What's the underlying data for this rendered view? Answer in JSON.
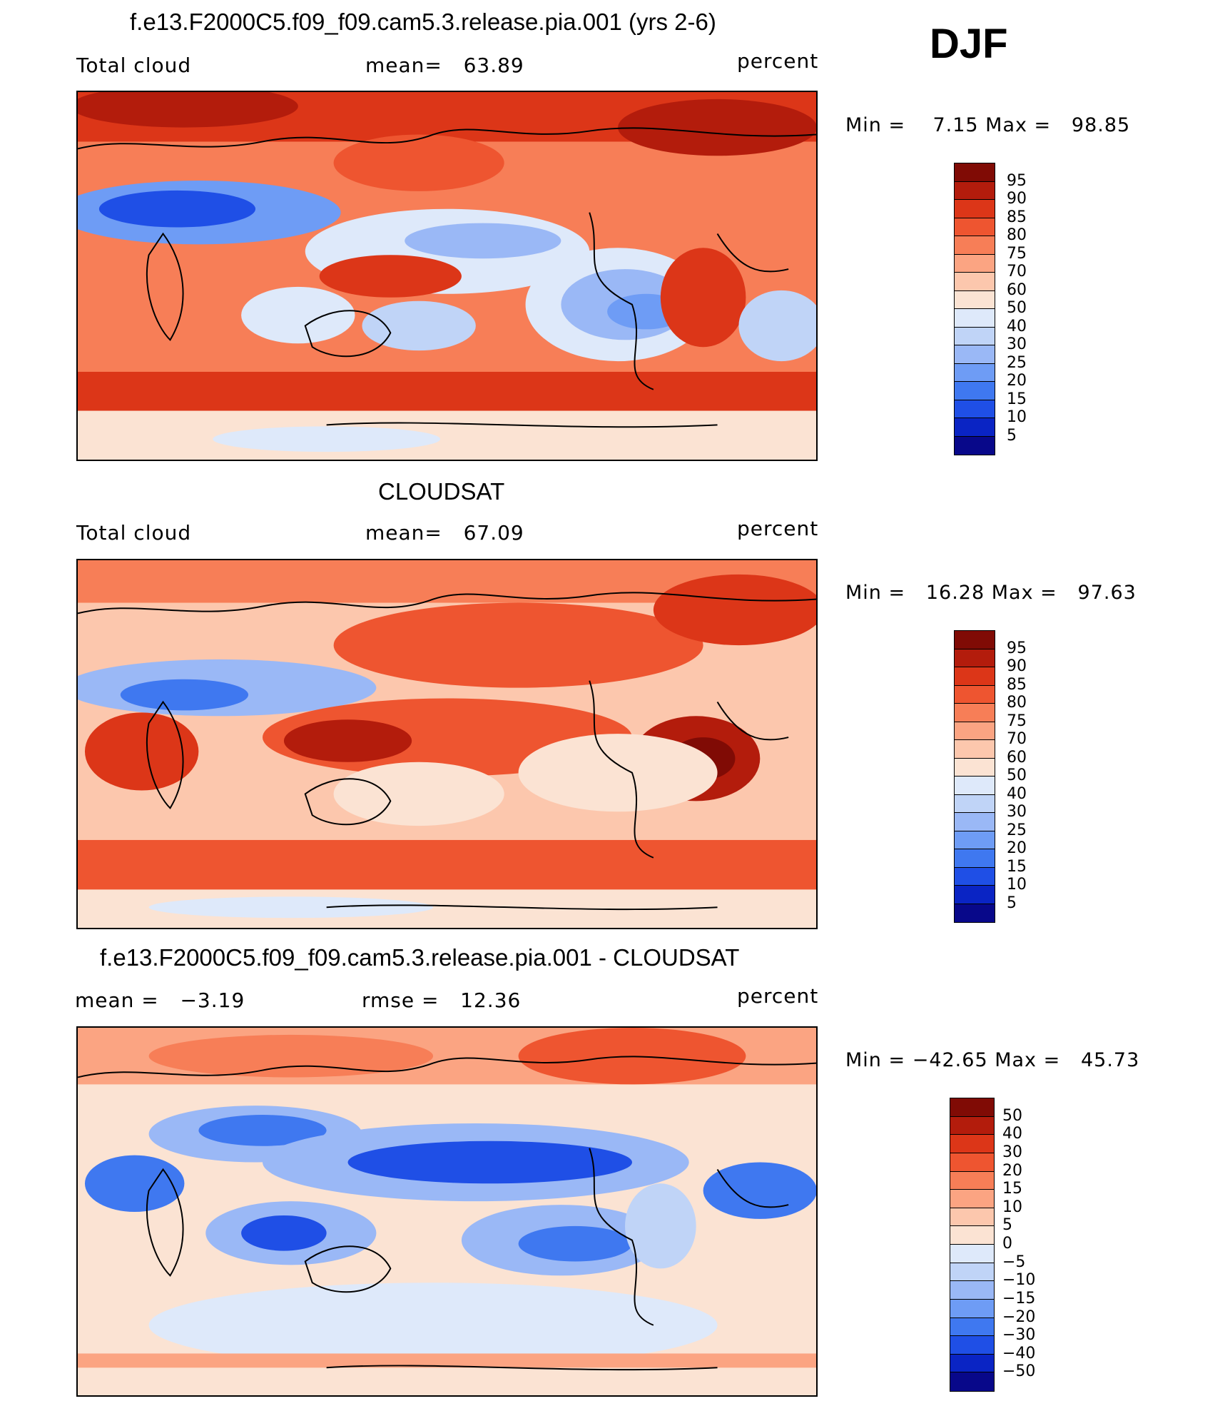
{
  "season": "DJF",
  "colors": {
    "abs_scale": [
      "#08088a",
      "#0a24c4",
      "#1f4fe6",
      "#3f78f0",
      "#6e9cf5",
      "#9ab8f6",
      "#c0d4f7",
      "#dee9fa",
      "#fbe3d3",
      "#fcc7ad",
      "#fba482",
      "#f77e57",
      "#ee5530",
      "#dc3618",
      "#b31c0c",
      "#800b05"
    ],
    "diff_scale": [
      "#08088a",
      "#0a24c4",
      "#1f4fe6",
      "#3f78f0",
      "#6e9cf5",
      "#9ab8f6",
      "#c0d4f7",
      "#dee9fa",
      "#fbe3d3",
      "#fcc7ad",
      "#fba482",
      "#f77e57",
      "#ee5530",
      "#dc3618",
      "#b31c0c",
      "#800b05"
    ]
  },
  "panels": [
    {
      "id": "model",
      "title": "f.e13.F2000C5.f09_f09.cam5.3.release.pia.001 (yrs 2-6)",
      "left_label": "Total cloud",
      "mid_label": "mean=   63.89",
      "units": "percent",
      "minmax": "Min =    7.15 Max =   98.85",
      "colorbar_ticks": [
        "95",
        "90",
        "85",
        "80",
        "75",
        "70",
        "60",
        "50",
        "40",
        "30",
        "25",
        "20",
        "15",
        "10",
        "5"
      ]
    },
    {
      "id": "obs",
      "title": "CLOUDSAT",
      "left_label": "Total cloud",
      "mid_label": "mean=   67.09",
      "units": "percent",
      "minmax": "Min =   16.28 Max =   97.63",
      "colorbar_ticks": [
        "95",
        "90",
        "85",
        "80",
        "75",
        "70",
        "60",
        "50",
        "40",
        "30",
        "25",
        "20",
        "15",
        "10",
        "5"
      ]
    },
    {
      "id": "diff",
      "title": "f.e13.F2000C5.f09_f09.cam5.3.release.pia.001 - CLOUDSAT",
      "left_label": "mean =   −3.19",
      "mid_label": "rmse =   12.36",
      "units": "percent",
      "minmax": "Min = −42.65 Max =   45.73",
      "colorbar_ticks": [
        "50",
        "40",
        "30",
        "20",
        "15",
        "10",
        "5",
        "0",
        "−5",
        "−10",
        "−15",
        "−20",
        "−30",
        "−40",
        "−50"
      ]
    }
  ]
}
